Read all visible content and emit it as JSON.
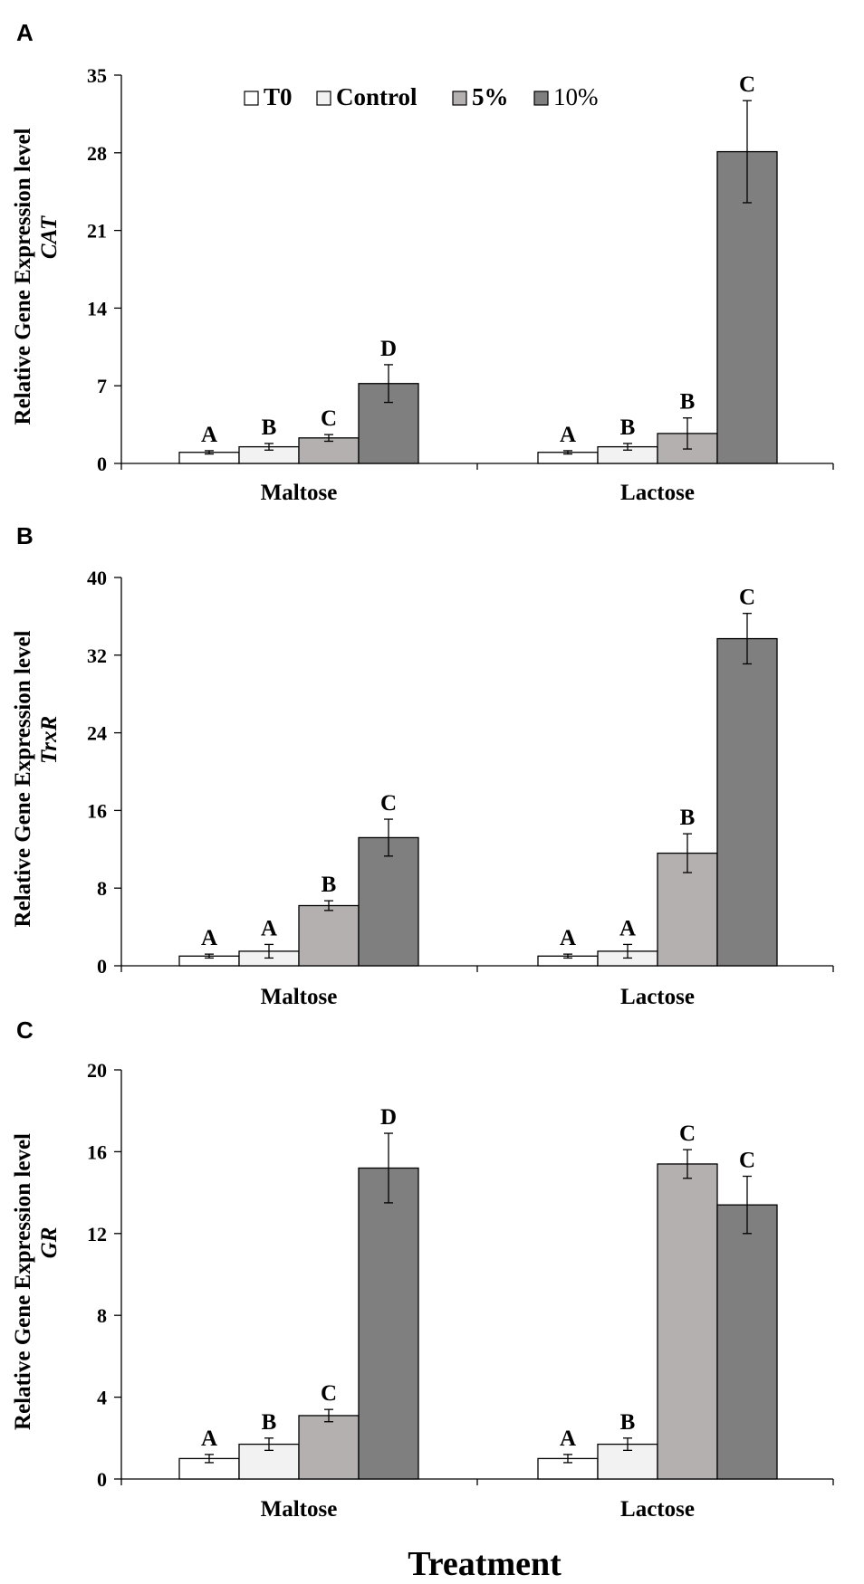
{
  "figure": {
    "xlabel": "Treatment"
  },
  "legend": {
    "entries": [
      {
        "name": "T0",
        "color": "#ffffff",
        "bold": true
      },
      {
        "name": "Control",
        "color": "#f2f2f2",
        "bold": true
      },
      {
        "name": "5%",
        "color": "#b3b0af",
        "bold": true
      },
      {
        "name": "10%",
        "color": "#7f7f7f",
        "bold": false
      }
    ]
  },
  "chart_data": [
    {
      "type": "bar",
      "panel": "A",
      "ylabel": "Relative Gene Expression level",
      "gene": "CAT",
      "categories": [
        "Maltose",
        "Lactose"
      ],
      "ylim": [
        0,
        35
      ],
      "yticks": [
        0,
        7,
        14,
        21,
        28,
        35
      ],
      "series": [
        {
          "name": "T0",
          "values": [
            1.0,
            1.0
          ],
          "errors": [
            0.15,
            0.15
          ],
          "letters": [
            "A",
            "A"
          ]
        },
        {
          "name": "Control",
          "values": [
            1.5,
            1.5
          ],
          "errors": [
            0.3,
            0.3
          ],
          "letters": [
            "B",
            "B"
          ]
        },
        {
          "name": "5%",
          "values": [
            2.3,
            2.7
          ],
          "errors": [
            0.3,
            1.4
          ],
          "letters": [
            "C",
            "B"
          ]
        },
        {
          "name": "10%",
          "values": [
            7.2,
            28.1
          ],
          "errors": [
            1.7,
            4.6
          ],
          "letters": [
            "D",
            "C"
          ]
        }
      ]
    },
    {
      "type": "bar",
      "panel": "B",
      "ylabel": "Relative Gene Expression level",
      "gene": "TrxR",
      "categories": [
        "Maltose",
        "Lactose"
      ],
      "ylim": [
        0,
        40
      ],
      "yticks": [
        0,
        8,
        16,
        24,
        32,
        40
      ],
      "series": [
        {
          "name": "T0",
          "values": [
            1.0,
            1.0
          ],
          "errors": [
            0.2,
            0.2
          ],
          "letters": [
            "A",
            "A"
          ]
        },
        {
          "name": "Control",
          "values": [
            1.5,
            1.5
          ],
          "errors": [
            0.7,
            0.7
          ],
          "letters": [
            "A",
            "A"
          ]
        },
        {
          "name": "5%",
          "values": [
            6.2,
            11.6
          ],
          "errors": [
            0.5,
            2.0
          ],
          "letters": [
            "B",
            "B"
          ]
        },
        {
          "name": "10%",
          "values": [
            13.2,
            33.7
          ],
          "errors": [
            1.9,
            2.6
          ],
          "letters": [
            "C",
            "C"
          ]
        }
      ]
    },
    {
      "type": "bar",
      "panel": "C",
      "ylabel": "Relative Gene Expression level",
      "gene": "GR",
      "categories": [
        "Maltose",
        "Lactose"
      ],
      "ylim": [
        0,
        20
      ],
      "yticks": [
        0,
        4,
        8,
        12,
        16,
        20
      ],
      "series": [
        {
          "name": "T0",
          "values": [
            1.0,
            1.0
          ],
          "errors": [
            0.2,
            0.2
          ],
          "letters": [
            "A",
            "A"
          ]
        },
        {
          "name": "Control",
          "values": [
            1.7,
            1.7
          ],
          "errors": [
            0.3,
            0.3
          ],
          "letters": [
            "B",
            "B"
          ]
        },
        {
          "name": "5%",
          "values": [
            3.1,
            15.4
          ],
          "errors": [
            0.3,
            0.7
          ],
          "letters": [
            "C",
            "C"
          ]
        },
        {
          "name": "10%",
          "values": [
            15.2,
            13.4
          ],
          "errors": [
            1.7,
            1.4
          ],
          "letters": [
            "D",
            "C"
          ]
        }
      ]
    }
  ]
}
